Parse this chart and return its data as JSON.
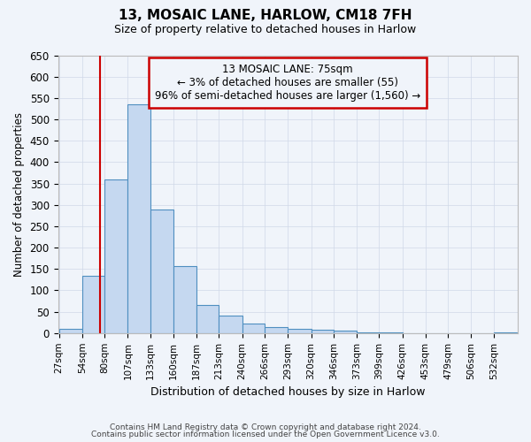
{
  "title": "13, MOSAIC LANE, HARLOW, CM18 7FH",
  "subtitle": "Size of property relative to detached houses in Harlow",
  "xlabel": "Distribution of detached houses by size in Harlow",
  "ylabel": "Number of detached properties",
  "footer_lines": [
    "Contains HM Land Registry data © Crown copyright and database right 2024.",
    "Contains public sector information licensed under the Open Government Licence v3.0."
  ],
  "bin_edges": [
    27,
    54,
    80,
    107,
    133,
    160,
    187,
    213,
    240,
    266,
    293,
    320,
    346,
    373,
    399,
    426,
    453,
    479,
    506,
    532,
    559
  ],
  "bar_values": [
    10,
    135,
    360,
    535,
    290,
    157,
    65,
    40,
    22,
    15,
    10,
    8,
    5,
    2,
    1,
    0,
    0,
    0,
    0,
    1
  ],
  "bar_color": "#c5d8f0",
  "bar_edge_color": "#4f8fc0",
  "red_line_x": 75,
  "ylim": [
    0,
    650
  ],
  "yticks": [
    0,
    50,
    100,
    150,
    200,
    250,
    300,
    350,
    400,
    450,
    500,
    550,
    600,
    650
  ],
  "annotation_title": "13 MOSAIC LANE: 75sqm",
  "annotation_line1": "← 3% of detached houses are smaller (55)",
  "annotation_line2": "96% of semi-detached houses are larger (1,560) →",
  "annotation_box_color": "#cc0000",
  "bg_color": "#f0f4fa",
  "grid_color": "#d0d8e8"
}
